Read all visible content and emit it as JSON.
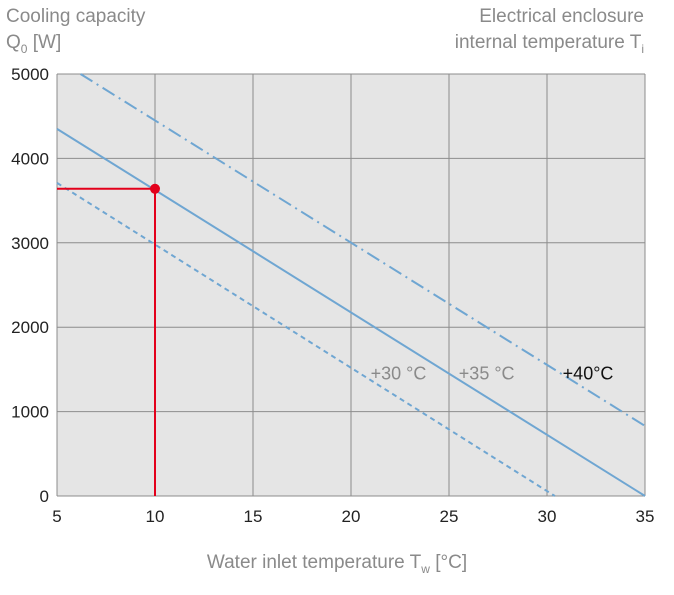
{
  "chart_data": {
    "type": "line",
    "ylabel_line1": "Cooling capacity",
    "ylabel_q": "Q",
    "ylabel_q_sub": "0",
    "ylabel_unit": " [W]",
    "right_title_line1": "Electrical enclosure",
    "right_title_line2": "internal temperature T",
    "right_title_sub": "i",
    "xlabel_main": "Water inlet temperature T",
    "xlabel_sub": "w",
    "xlabel_unit": " [°C]",
    "xlim": [
      5,
      35
    ],
    "ylim": [
      0,
      5000
    ],
    "xticks": [
      5,
      10,
      15,
      20,
      25,
      30,
      35
    ],
    "yticks": [
      0,
      1000,
      2000,
      3000,
      4000,
      5000
    ],
    "grid": true,
    "series": [
      {
        "name": "+30 °C",
        "style": "dashed",
        "color": "#6fa6d2",
        "x": [
          5,
          30.4
        ],
        "y": [
          3710,
          0
        ]
      },
      {
        "name": "+35 °C",
        "style": "solid",
        "color": "#6fa6d2",
        "x": [
          5,
          35
        ],
        "y": [
          4350,
          0
        ]
      },
      {
        "name": "+40 °C",
        "style": "dashdot",
        "color": "#6fa6d2",
        "x": [
          6.2,
          35
        ],
        "y": [
          5000,
          830
        ]
      }
    ],
    "curve_labels": [
      {
        "text": "+30 °C",
        "x": 21,
        "y": 1450,
        "color": "#8a8a8a"
      },
      {
        "text": "+35 °C",
        "x": 25.5,
        "y": 1450,
        "color": "#8a8a8a"
      },
      {
        "text": "+40°C",
        "x": 30.8,
        "y": 1450,
        "color": "#111111"
      }
    ],
    "marker": {
      "x": 10,
      "y": 3640,
      "color": "#e3001b"
    }
  }
}
